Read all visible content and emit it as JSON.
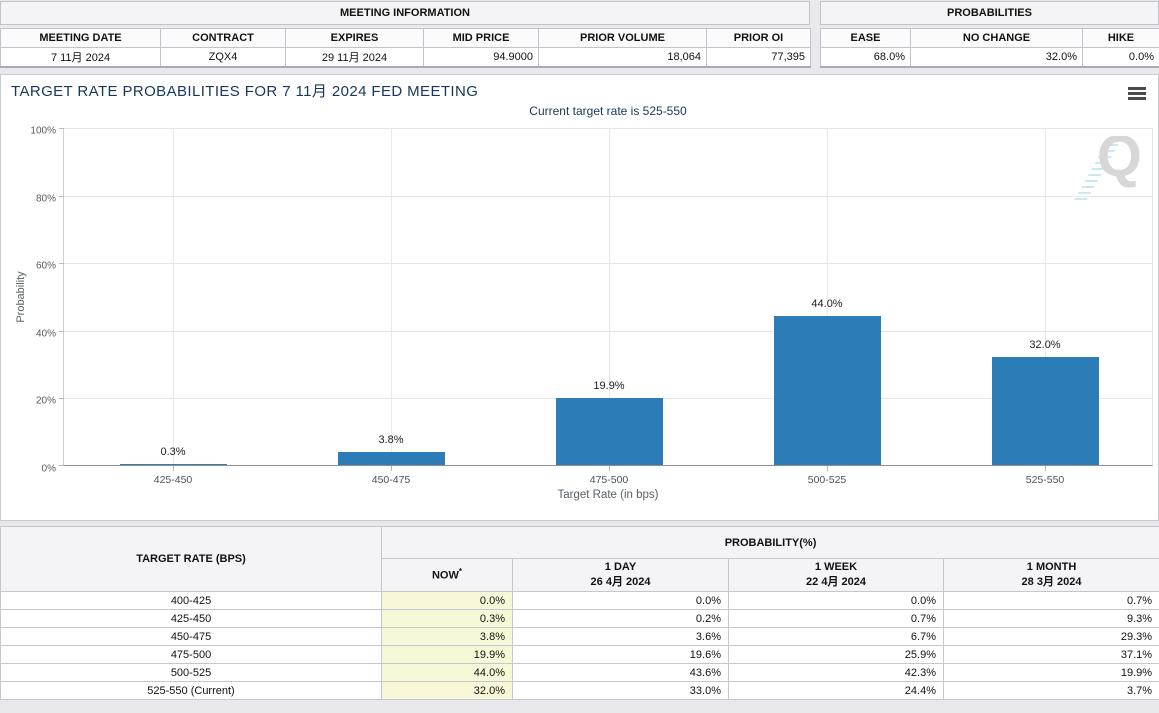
{
  "meeting_information": {
    "title": "MEETING INFORMATION",
    "columns": [
      "MEETING DATE",
      "CONTRACT",
      "EXPIRES",
      "MID PRICE",
      "PRIOR VOLUME",
      "PRIOR OI"
    ],
    "values": [
      "7 11月 2024",
      "ZQX4",
      "29 11月 2024",
      "94.9000",
      "18,064",
      "77,395"
    ]
  },
  "probabilities_summary": {
    "title": "PROBABILITIES",
    "columns": [
      "EASE",
      "NO CHANGE",
      "HIKE"
    ],
    "values": [
      "68.0%",
      "32.0%",
      "0.0%"
    ]
  },
  "chart_data": {
    "type": "bar",
    "title": "TARGET RATE PROBABILITIES FOR 7 11月 2024 FED MEETING",
    "subtitle": "Current target rate is 525-550",
    "categories": [
      "425-450",
      "450-475",
      "475-500",
      "500-525",
      "525-550"
    ],
    "values": [
      0.3,
      3.8,
      19.9,
      44.0,
      32.0
    ],
    "value_labels": [
      "0.3%",
      "3.8%",
      "19.9%",
      "44.0%",
      "32.0%"
    ],
    "xlabel": "Target Rate (in bps)",
    "ylabel": "Probability",
    "ylim": [
      0,
      100
    ],
    "ytick_step": 20,
    "ytick_labels": [
      "0%",
      "20%",
      "40%",
      "60%",
      "80%",
      "100%"
    ],
    "grid": true,
    "legend": "none",
    "bar_color": "#2b7cb7",
    "watermark_letter": "Q"
  },
  "probability_table": {
    "row_header": "TARGET RATE (BPS)",
    "group_header": "PROBABILITY(%)",
    "columns": [
      {
        "label": "NOW",
        "sup": "*",
        "sub": ""
      },
      {
        "label": "1 DAY",
        "sub": "26 4月 2024"
      },
      {
        "label": "1 WEEK",
        "sub": "22 4月 2024"
      },
      {
        "label": "1 MONTH",
        "sub": "28 3月 2024"
      }
    ],
    "rows": [
      {
        "rate": "400-425",
        "cells": [
          "0.0%",
          "0.0%",
          "0.0%",
          "0.7%"
        ]
      },
      {
        "rate": "425-450",
        "cells": [
          "0.3%",
          "0.2%",
          "0.7%",
          "9.3%"
        ]
      },
      {
        "rate": "450-475",
        "cells": [
          "3.8%",
          "3.6%",
          "6.7%",
          "29.3%"
        ]
      },
      {
        "rate": "475-500",
        "cells": [
          "19.9%",
          "19.6%",
          "25.9%",
          "37.1%"
        ]
      },
      {
        "rate": "500-525",
        "cells": [
          "44.0%",
          "43.6%",
          "42.3%",
          "19.9%"
        ]
      },
      {
        "rate": "525-550 (Current)",
        "cells": [
          "32.0%",
          "33.0%",
          "24.4%",
          "3.7%"
        ]
      }
    ]
  },
  "colors": {
    "bar": "#2b7cb7",
    "title_navy": "#17375e",
    "now_highlight": "#f8f8d8",
    "header_bg": "#f4f4f6"
  }
}
